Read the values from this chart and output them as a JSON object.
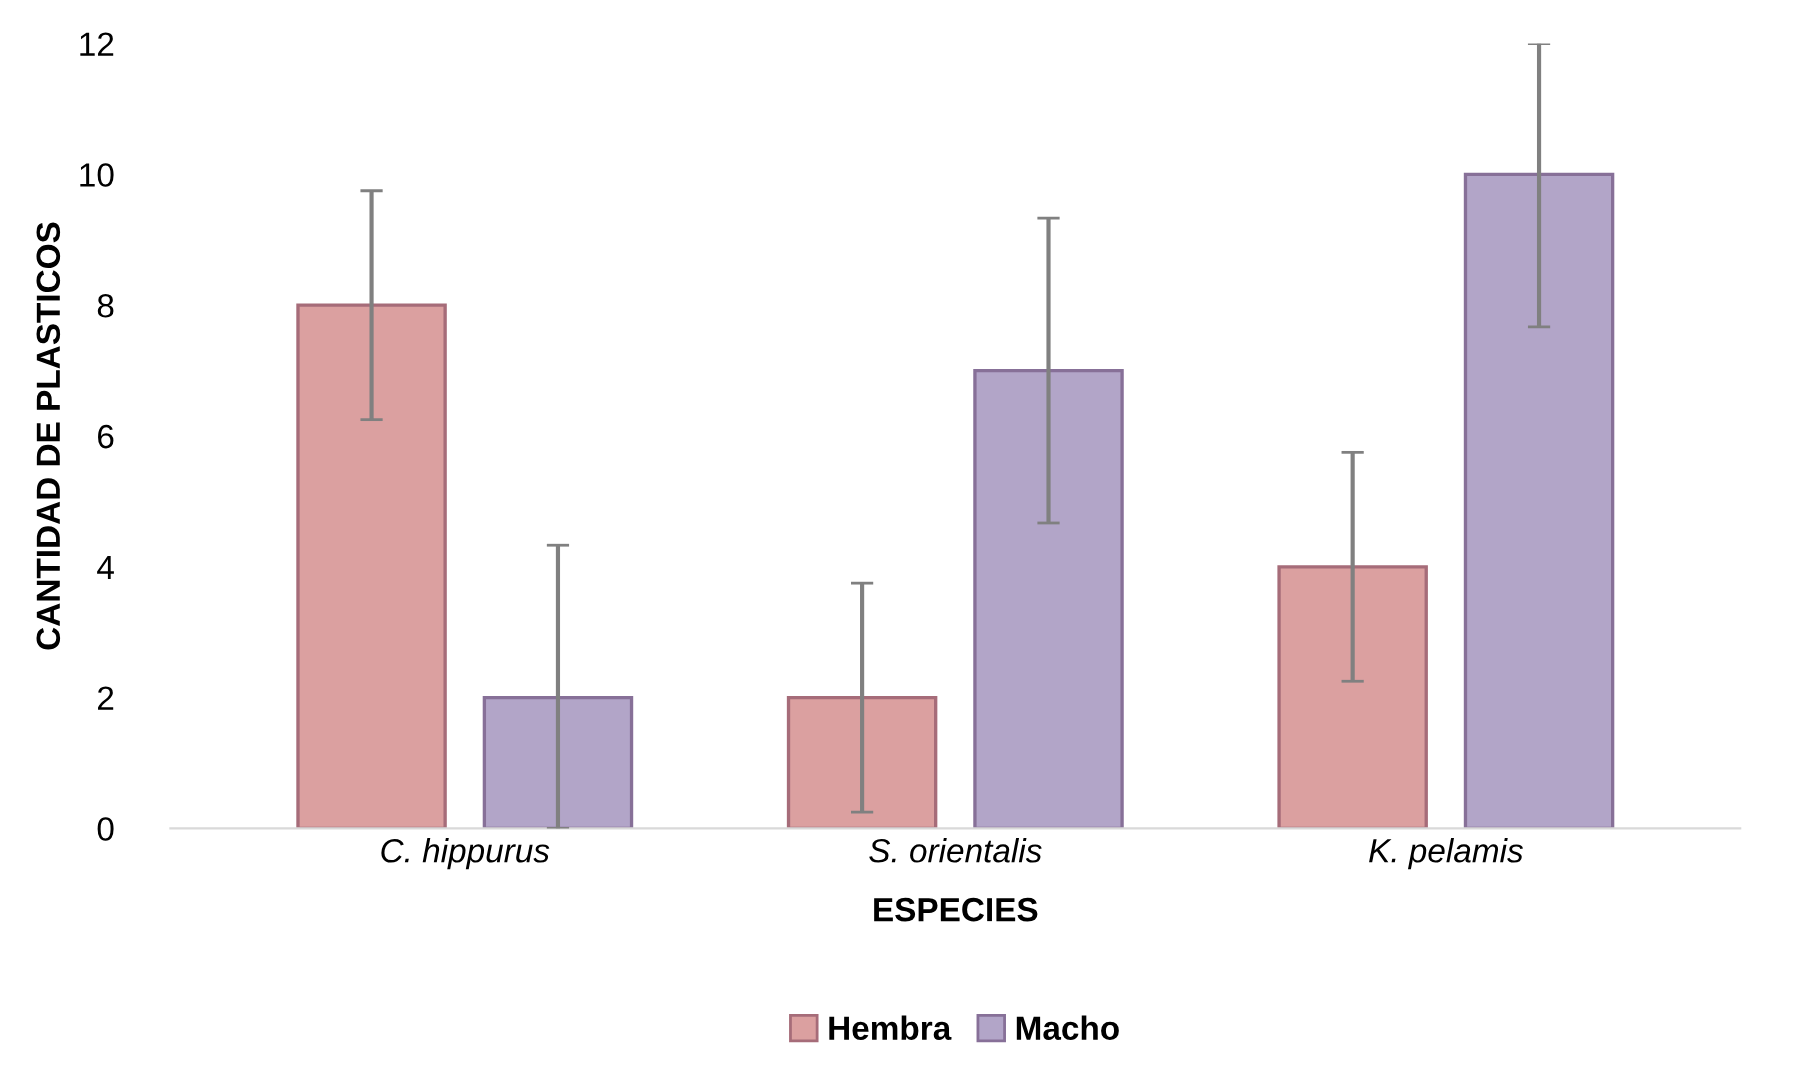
{
  "chart_data": {
    "type": "bar",
    "xlabel": "ESPECIES",
    "ylabel": "CANTIDAD DE PLASTICOS",
    "categories": [
      "C. hippurus",
      "S. orientalis",
      "K. pelamis"
    ],
    "series": [
      {
        "name": "Hembra",
        "color": "#dba0a0",
        "values": [
          8,
          2,
          4
        ],
        "errors": [
          [
            6.25,
            9.75
          ],
          [
            0.25,
            3.75
          ],
          [
            2.25,
            5.75
          ]
        ]
      },
      {
        "name": "Macho",
        "color": "#b2a5c8",
        "values": [
          2,
          7,
          10
        ],
        "errors": [
          [
            0,
            4.33
          ],
          [
            4.67,
            9.33
          ],
          [
            7.67,
            12
          ]
        ]
      }
    ],
    "ylim": [
      0,
      12
    ],
    "yticks": [
      0,
      2,
      4,
      6,
      8,
      10,
      12
    ],
    "grid": false,
    "legend": "bottom"
  }
}
